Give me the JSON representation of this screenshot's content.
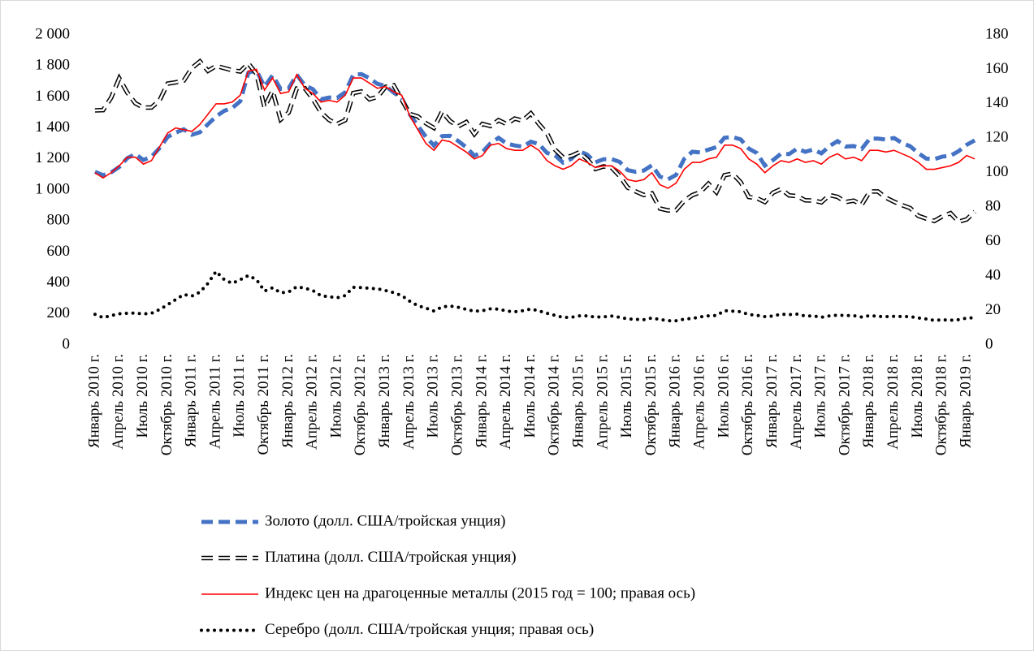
{
  "chart_data": {
    "type": "line",
    "categories": [
      "Январь 2010 г.",
      null,
      null,
      "Апрель 2010 г.",
      null,
      null,
      "Июль 2010 г.",
      null,
      null,
      "Октябрь 2010 г.",
      null,
      null,
      "Январь 2011 г.",
      null,
      null,
      "Апрель 2011 г.",
      null,
      null,
      "Июль 2011 г.",
      null,
      null,
      "Октябрь 2011 г.",
      null,
      null,
      "Январь 2012 г.",
      null,
      null,
      "Апрель 2012 г.",
      null,
      null,
      "Июль 2012 г.",
      null,
      null,
      "Октябрь 2012 г.",
      null,
      null,
      "Январь 2013 г.",
      null,
      null,
      "Апрель 2013 г.",
      null,
      null,
      "Июль 2013 г.",
      null,
      null,
      "Октябрь 2013 г.",
      null,
      null,
      "Январь 2014 г.",
      null,
      null,
      "Апрель 2014 г.",
      null,
      null,
      "Июль 2014 г.",
      null,
      null,
      "Октябрь 2014 г.",
      null,
      null,
      "Январь 2015 г.",
      null,
      null,
      "Апрель 2015 г.",
      null,
      null,
      "Июль 2015 г.",
      null,
      null,
      "Октябрь 2015 г.",
      null,
      null,
      "Январь 2016 г.",
      null,
      null,
      "Апрель 2016 г.",
      null,
      null,
      "Июль 2016 г.",
      null,
      null,
      "Октябрь 2016 г.",
      null,
      null,
      "Январь 2017 г.",
      null,
      null,
      "Апрель 2017 г.",
      null,
      null,
      "Июль 2017 г.",
      null,
      null,
      "Октябрь 2017 г.",
      null,
      null,
      "Январь 2018 г.",
      null,
      null,
      "Апрель 2018 г.",
      null,
      null,
      "Июль 2018 г.",
      null,
      null,
      "Октябрь 2018 г.",
      null,
      null,
      "Январь 2019 г.",
      null
    ],
    "series": [
      {
        "name": "Золото (долл. США/тройская унция)",
        "color": "#4472c4",
        "line_style": "dashed",
        "values": [
          1117,
          1095,
          1113,
          1148,
          1205,
          1232,
          1193,
          1215,
          1270,
          1342,
          1370,
          1391,
          1356,
          1372,
          1424,
          1474,
          1510,
          1529,
          1572,
          1756,
          1772,
          1666,
          1739,
          1652,
          1656,
          1743,
          1674,
          1650,
          1585,
          1596,
          1594,
          1630,
          1744,
          1747,
          1721,
          1684,
          1671,
          1628,
          1593,
          1487,
          1414,
          1343,
          1286,
          1347,
          1349,
          1316,
          1275,
          1221,
          1244,
          1300,
          1336,
          1299,
          1287,
          1279,
          1311,
          1296,
          1239,
          1223,
          1176,
          1200,
          1251,
          1227,
          1178,
          1198,
          1199,
          1181,
          1128,
          1117,
          1125,
          1159,
          1086,
          1068,
          1097,
          1200,
          1246,
          1242,
          1260,
          1276,
          1337,
          1341,
          1326,
          1267,
          1238,
          1157,
          1192,
          1234,
          1231,
          1267,
          1246,
          1261,
          1236,
          1283,
          1315,
          1280,
          1283,
          1265,
          1331,
          1331,
          1325,
          1335,
          1303,
          1282,
          1238,
          1202,
          1199,
          1215,
          1221,
          1250,
          1291,
          1320
        ]
      },
      {
        "name": "Платина (долл. США/тройская унция)",
        "color": "#000000",
        "line_style": "outlined-dashed",
        "values": [
          1513,
          1515,
          1595,
          1720,
          1628,
          1559,
          1531,
          1532,
          1578,
          1686,
          1694,
          1705,
          1786,
          1829,
          1768,
          1800,
          1786,
          1772,
          1764,
          1816,
          1749,
          1534,
          1639,
          1454,
          1500,
          1654,
          1656,
          1586,
          1500,
          1452,
          1425,
          1450,
          1625,
          1635,
          1585,
          1600,
          1665,
          1675,
          1583,
          1490,
          1474,
          1430,
          1400,
          1505,
          1444,
          1410,
          1438,
          1360,
          1426,
          1412,
          1450,
          1425,
          1460,
          1447,
          1494,
          1425,
          1365,
          1260,
          1210,
          1219,
          1243,
          1197,
          1135,
          1152,
          1144,
          1090,
          1015,
          990,
          967,
          978,
          880,
          868,
          870,
          930,
          966,
          986,
          1040,
          985,
          1095,
          1105,
          1050,
          955,
          947,
          922,
          982,
          1006,
          965,
          960,
          933,
          932,
          920,
          967,
          955,
          922,
          931,
          905,
          990,
          990,
          950,
          924,
          902,
          883,
          833,
          815,
          800,
          830,
          850,
          795,
          810,
          860
        ]
      },
      {
        "name": "Индекс цен на драгоценные металлы (2015 год = 100; правая ось)",
        "color": "#ff0000",
        "line_style": "solid",
        "axis": "y2",
        "values": [
          100,
          97,
          100,
          104,
          109,
          109,
          105,
          107,
          115,
          123,
          126,
          125,
          124,
          128,
          134,
          140,
          140,
          141,
          145,
          159,
          160,
          148,
          155,
          146,
          147,
          157,
          149,
          146,
          141,
          142,
          141,
          145,
          155,
          155,
          152,
          149,
          150,
          147,
          145,
          133,
          125,
          117,
          113,
          119,
          118,
          115,
          112,
          108,
          110,
          116,
          117,
          114,
          113,
          113,
          116,
          113,
          107,
          104,
          102,
          104,
          108,
          106,
          103,
          104,
          104,
          101,
          96,
          95,
          96,
          100,
          93,
          91,
          94,
          102,
          106,
          106,
          108,
          109,
          116,
          116,
          114,
          108,
          105,
          100,
          104,
          107,
          106,
          108,
          106,
          107,
          105,
          109,
          111,
          108,
          109,
          107,
          113,
          113,
          112,
          113,
          111,
          109,
          106,
          102,
          102,
          103,
          104,
          106,
          110,
          108
        ]
      },
      {
        "name": "Серебро (долл. США/тройская унция; правая ось)",
        "color": "#000000",
        "line_style": "dotted",
        "axis": "y2",
        "values": [
          17.8,
          15.9,
          17.1,
          18.1,
          18.4,
          18.5,
          18.0,
          18.4,
          20.6,
          23.4,
          26.4,
          29.3,
          28.4,
          30.7,
          35.8,
          42.7,
          38.0,
          35.8,
          37.9,
          40.3,
          38.0,
          31.3,
          33.2,
          30.3,
          30.8,
          33.8,
          33.0,
          31.6,
          28.6,
          28.0,
          27.4,
          28.7,
          33.5,
          33.3,
          32.9,
          32.6,
          31.6,
          30.4,
          28.7,
          25.4,
          22.8,
          21.4,
          19.7,
          22.1,
          22.6,
          21.9,
          20.7,
          19.6,
          19.9,
          21.0,
          20.8,
          19.7,
          19.3,
          19.9,
          20.9,
          19.8,
          18.4,
          17.2,
          16.0,
          16.1,
          16.9,
          16.9,
          16.2,
          16.3,
          16.8,
          16.1,
          15.1,
          14.9,
          14.7,
          15.7,
          14.8,
          14.1,
          14.1,
          15.0,
          15.4,
          16.3,
          16.9,
          17.1,
          19.9,
          19.6,
          19.3,
          17.7,
          17.2,
          16.5,
          16.8,
          17.9,
          17.6,
          17.9,
          16.8,
          16.9,
          16.1,
          16.9,
          17.3,
          17.1,
          17.0,
          16.2,
          17.1,
          16.6,
          16.5,
          16.6,
          16.5,
          16.5,
          15.7,
          15.1,
          14.3,
          14.6,
          14.4,
          14.7,
          15.6,
          15.8
        ]
      }
    ],
    "ylim": [
      0,
      2000
    ],
    "yticks": [
      0,
      200,
      400,
      600,
      800,
      {
        "value": 1000,
        "label": "1 000"
      },
      {
        "value": 1200,
        "label": "1 200"
      },
      {
        "value": 1400,
        "label": "1 400"
      },
      {
        "value": 1600,
        "label": "1 600"
      },
      {
        "value": 1800,
        "label": "1 800"
      },
      {
        "value": 2000,
        "label": "2 000"
      }
    ],
    "y2lim": [
      0,
      180
    ],
    "y2ticks": [
      0,
      20,
      40,
      60,
      80,
      100,
      120,
      140,
      160,
      180
    ],
    "legend": "bottom"
  }
}
